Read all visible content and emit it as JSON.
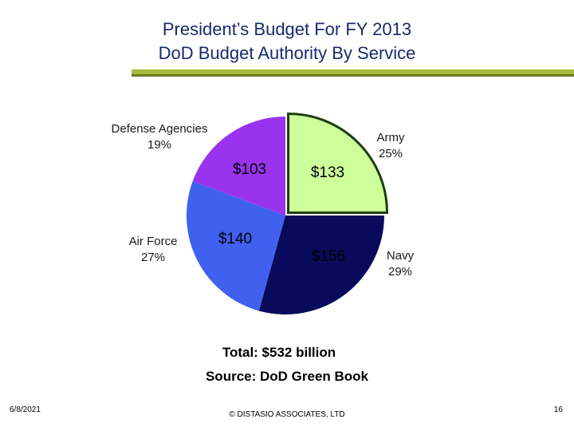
{
  "header": {
    "line1": "President’s Budget For FY 2013",
    "line2": "DoD Budget Authority By Service"
  },
  "colors": {
    "title": "#1a2a6c",
    "rule": "#a8b83a",
    "army": "#ccff99",
    "navy": "#0a0a5c",
    "air_force": "#4060f0",
    "defense_agencies": "#9933ee"
  },
  "chart_data": {
    "type": "pie",
    "title": "DoD Budget Authority By Service",
    "unit": "$ billion",
    "slices": [
      {
        "name": "Army",
        "percent": "25%",
        "value": 133,
        "value_label": "$133",
        "color": "#ccff99",
        "exploded": true
      },
      {
        "name": "Navy",
        "percent": "29%",
        "value": 156,
        "value_label": "$156",
        "color": "#0a0a5c",
        "exploded": false
      },
      {
        "name": "Air Force",
        "percent": "27%",
        "value": 140,
        "value_label": "$140",
        "color": "#4060f0",
        "exploded": false
      },
      {
        "name": "Defense Agencies",
        "percent": "19%",
        "value": 103,
        "value_label": "$103",
        "color": "#9933ee",
        "exploded": false
      }
    ],
    "total_label": "Total: $532 billion",
    "source_label": "Source: DoD Green Book"
  },
  "footer": {
    "date": "6/8/2021",
    "copyright": "© DISTASIO ASSOCIATES, LTD",
    "page_number": "16"
  }
}
